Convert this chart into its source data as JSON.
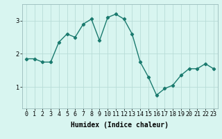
{
  "x": [
    0,
    1,
    2,
    3,
    4,
    5,
    6,
    7,
    8,
    9,
    10,
    11,
    12,
    13,
    14,
    15,
    16,
    17,
    18,
    19,
    20,
    21,
    22,
    23
  ],
  "y": [
    1.85,
    1.85,
    1.75,
    1.75,
    2.35,
    2.6,
    2.5,
    2.9,
    3.05,
    2.4,
    3.1,
    3.2,
    3.05,
    2.6,
    1.75,
    1.3,
    0.75,
    0.95,
    1.05,
    1.35,
    1.55,
    1.55,
    1.7,
    1.55
  ],
  "line_color": "#1a7a6e",
  "marker": "D",
  "marker_size": 2.2,
  "bg_color": "#d8f5f0",
  "grid_color": "#b8ddd8",
  "xlabel": "Humidex (Indice chaleur)",
  "xlim": [
    -0.5,
    23.5
  ],
  "ylim": [
    0.35,
    3.5
  ],
  "yticks": [
    1,
    2,
    3
  ],
  "xlabel_fontsize": 7,
  "tick_fontsize": 6,
  "linewidth": 1.0
}
